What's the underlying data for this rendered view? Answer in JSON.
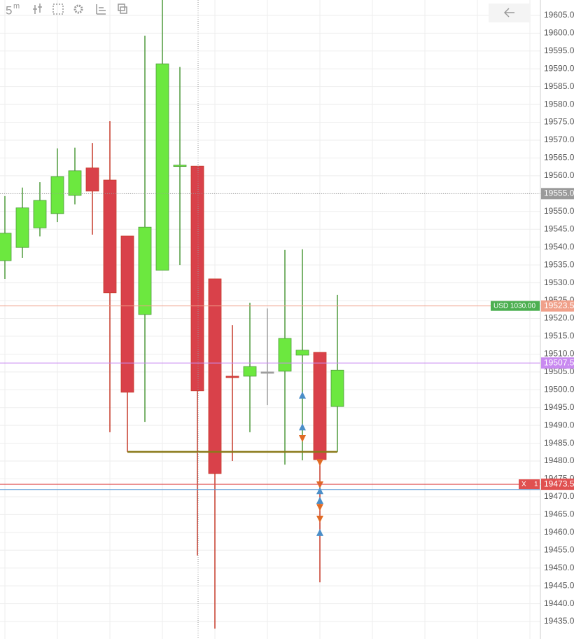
{
  "toolbar": {
    "interval": "5",
    "interval_unit": "m"
  },
  "chart_data": {
    "type": "candlestick",
    "open": [
      19536.2,
      19539.9,
      19545.4,
      19549.4,
      19554.5,
      19562.2,
      19558.8,
      19543.1,
      19521.1,
      19533.5,
      19562.7,
      19562.7,
      19531.1,
      19503.8,
      19503.8,
      19505.0,
      19505.2,
      19509.7,
      19510.5,
      19495.3
    ],
    "high": [
      19554.3,
      19556.7,
      19558.2,
      19567.7,
      19567.9,
      19569.2,
      19575.3,
      19543.1,
      19599.3,
      19612.0,
      19590.5,
      19562.7,
      19531.1,
      19518.1,
      19524.4,
      19522.8,
      19539.2,
      19539.4,
      19510.5,
      19526.6
    ],
    "low": [
      19531.1,
      19537.0,
      19543.0,
      19547.0,
      19552.0,
      19543.5,
      19488.1,
      19482.6,
      19491.0,
      19533.5,
      19535.0,
      19453.5,
      19433.0,
      19480.0,
      19488.1,
      19495.7,
      19479.0,
      19480.2,
      19446.0,
      19482.6
    ],
    "close": [
      19543.9,
      19551.0,
      19553.1,
      19559.8,
      19561.4,
      19555.7,
      19527.2,
      19499.3,
      19545.6,
      19591.4,
      19563.0,
      19499.7,
      19476.5,
      19503.6,
      19506.5,
      19505.0,
      19514.4,
      19511.1,
      19480.4,
      19505.5
    ],
    "up_color": "#6ce83f",
    "up_wick_color": "#4f9a3c",
    "down_color": "#d9414a",
    "down_wick_color": "#c63a2a",
    "doji_color": "#9e9e9e",
    "ylim": [
      19430.1,
      19609.3
    ],
    "yticks": [
      {
        "value": 19435,
        "label": "19435.0"
      },
      {
        "value": 19440,
        "label": "19440.0"
      },
      {
        "value": 19445,
        "label": "19445.0"
      },
      {
        "value": 19450,
        "label": "19450.0"
      },
      {
        "value": 19455,
        "label": "19455.0"
      },
      {
        "value": 19460,
        "label": "19460.0"
      },
      {
        "value": 19465,
        "label": "19465.0"
      },
      {
        "value": 19470,
        "label": "19470.0"
      },
      {
        "value": 19475,
        "label": "19475.0"
      },
      {
        "value": 19480,
        "label": "19480.0"
      },
      {
        "value": 19485,
        "label": "19485.0"
      },
      {
        "value": 19490,
        "label": "19490.0"
      },
      {
        "value": 19495,
        "label": "19495.0"
      },
      {
        "value": 19500,
        "label": "19500.0"
      },
      {
        "value": 19505,
        "label": "19505.0"
      },
      {
        "value": 19510,
        "label": "19510.0"
      },
      {
        "value": 19515,
        "label": "19515.0"
      },
      {
        "value": 19520,
        "label": "19520.0"
      },
      {
        "value": 19525,
        "label": "19525.0"
      },
      {
        "value": 19530,
        "label": "19530.0"
      },
      {
        "value": 19535,
        "label": "19535.0"
      },
      {
        "value": 19540,
        "label": "19540.0"
      },
      {
        "value": 19545,
        "label": "19545.0"
      },
      {
        "value": 19550,
        "label": "19550.0"
      },
      {
        "value": 19555,
        "label": "19555.0"
      },
      {
        "value": 19560,
        "label": "19560.0"
      },
      {
        "value": 19565,
        "label": "19565.0"
      },
      {
        "value": 19570,
        "label": "19570.0"
      },
      {
        "value": 19575,
        "label": "19575.0"
      },
      {
        "value": 19580,
        "label": "19580.0"
      },
      {
        "value": 19585,
        "label": "19585.0"
      },
      {
        "value": 19590,
        "label": "19590.0"
      },
      {
        "value": 19595,
        "label": "19595.0"
      },
      {
        "value": 19600,
        "label": "19600.0"
      },
      {
        "value": 19605,
        "label": "19605.0"
      }
    ],
    "grid": true,
    "price_lines": [
      {
        "value": 19555.0,
        "label": "19555.0",
        "color": "#9a9a9a",
        "dotted": true
      },
      {
        "value": 19523.5,
        "label": "19523.5",
        "color": "#f0a08a",
        "tag": "USD 1030.00",
        "tag_color": "#4caf50"
      },
      {
        "value": 19507.5,
        "label": "19507.5",
        "color": "#c98af0"
      },
      {
        "value": 19472.0,
        "color": "#5b9bd5"
      },
      {
        "value": 19473.5,
        "label": "19473.5",
        "color": "#e05050",
        "tag": "X",
        "tag2": "1",
        "tag_color": "#e05050"
      }
    ],
    "level_line": {
      "value": 19482.6,
      "from": 7,
      "to": 19,
      "color": "#8a7a1a"
    },
    "markers": [
      {
        "candle": 17,
        "price": 19498.5,
        "side": "buy"
      },
      {
        "candle": 17,
        "price": 19489.6,
        "side": "buy"
      },
      {
        "candle": 17,
        "price": 19486.3,
        "side": "sell"
      },
      {
        "candle": 18,
        "price": 19479.6,
        "side": "sell"
      },
      {
        "candle": 18,
        "price": 19473.3,
        "side": "sell"
      },
      {
        "candle": 18,
        "price": 19471.7,
        "side": "buy"
      },
      {
        "candle": 18,
        "price": 19469.0,
        "side": "buy"
      },
      {
        "candle": 18,
        "price": 19467.0,
        "side": "sell"
      },
      {
        "candle": 18,
        "price": 19463.7,
        "side": "sell"
      },
      {
        "candle": 18,
        "price": 19460.0,
        "side": "buy"
      }
    ],
    "buy_color": "#4a8ec8",
    "sell_color": "#e06a24"
  }
}
